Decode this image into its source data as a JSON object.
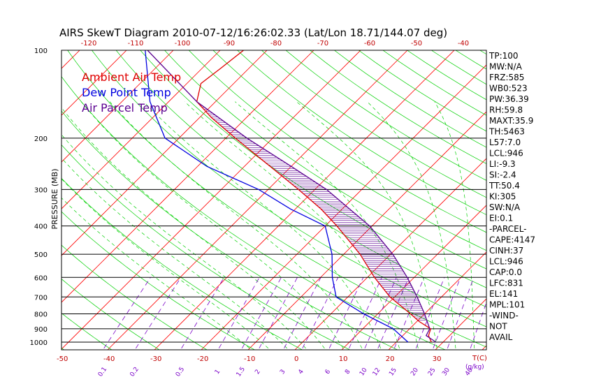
{
  "chart_data": {
    "type": "line",
    "title": "AIRS SkewT Diagram 2010-07-12/16:26:02.33 (Lat/Lon 18.71/144.07 deg)",
    "ylabel": "PRESSURE (MB)",
    "y_scale": "log",
    "ylim": [
      1050,
      100
    ],
    "pressure_ticks": [
      100,
      200,
      300,
      400,
      500,
      600,
      700,
      800,
      900,
      1000
    ],
    "bottom_temp_ticks": [
      -50,
      -40,
      -30,
      -20,
      -10,
      0,
      10,
      20,
      30
    ],
    "bottom_temp_unit": "T(C)",
    "top_temp_ticks": [
      -120,
      -110,
      -100,
      -90,
      -80,
      -70,
      -60,
      -50,
      -40
    ],
    "mixing_ratio_ticks": [
      "0.1",
      "0.2",
      "0.5",
      "1",
      "1.5",
      "2",
      "3",
      "4",
      "6",
      "8",
      "10",
      "12",
      "15",
      "20",
      "25",
      "30",
      "40"
    ],
    "mixing_ratio_unit": "(g/kg)",
    "legend": [
      {
        "label": "Ambient Air Temp",
        "color": "#e00000"
      },
      {
        "label": "Dew Point Temp",
        "color": "#0000e0"
      },
      {
        "label": "Air Parcel Temp",
        "color": "#5a0090"
      }
    ],
    "series": [
      {
        "name": "Ambient Air Temp",
        "points": [
          {
            "p": 1000,
            "t": 27.5
          },
          {
            "p": 950,
            "t": 25.5
          },
          {
            "p": 900,
            "t": 24.5
          },
          {
            "p": 850,
            "t": 20.5
          },
          {
            "p": 800,
            "t": 17.0
          },
          {
            "p": 700,
            "t": 9.0
          },
          {
            "p": 600,
            "t": 1.5
          },
          {
            "p": 500,
            "t": -6.5
          },
          {
            "p": 400,
            "t": -17.5
          },
          {
            "p": 350,
            "t": -24.5
          },
          {
            "p": 300,
            "t": -33.5
          },
          {
            "p": 250,
            "t": -44.5
          },
          {
            "p": 200,
            "t": -58.0
          },
          {
            "p": 170,
            "t": -67.5
          },
          {
            "p": 150,
            "t": -74.0
          },
          {
            "p": 130,
            "t": -77.0
          },
          {
            "p": 115,
            "t": -76.0
          },
          {
            "p": 100,
            "t": -75.0
          }
        ]
      },
      {
        "name": "Dew Point Temp",
        "points": [
          {
            "p": 1000,
            "t": 22.5
          },
          {
            "p": 900,
            "t": 16.5
          },
          {
            "p": 800,
            "t": 7.0
          },
          {
            "p": 700,
            "t": -2.5
          },
          {
            "p": 600,
            "t": -7.5
          },
          {
            "p": 500,
            "t": -12.5
          },
          {
            "p": 400,
            "t": -20.0
          },
          {
            "p": 350,
            "t": -31.0
          },
          {
            "p": 300,
            "t": -42.0
          },
          {
            "p": 250,
            "t": -58.0
          },
          {
            "p": 200,
            "t": -73.0
          },
          {
            "p": 150,
            "t": -84.0
          },
          {
            "p": 100,
            "t": -96.0
          }
        ]
      },
      {
        "name": "Air Parcel Temp",
        "points": [
          {
            "p": 1000,
            "t": 28.5
          },
          {
            "p": 950,
            "t": 25.0
          },
          {
            "p": 900,
            "t": 24.3
          },
          {
            "p": 800,
            "t": 20.0
          },
          {
            "p": 700,
            "t": 14.8
          },
          {
            "p": 600,
            "t": 8.5
          },
          {
            "p": 500,
            "t": 0.5
          },
          {
            "p": 400,
            "t": -10.5
          },
          {
            "p": 300,
            "t": -27.5
          },
          {
            "p": 250,
            "t": -40.0
          },
          {
            "p": 200,
            "t": -55.5
          },
          {
            "p": 150,
            "t": -74.0
          },
          {
            "p": 100,
            "t": -95.5
          }
        ]
      }
    ]
  },
  "stats": [
    "TP:100",
    "MW:N/A",
    "FRZ:585",
    "WB0:523",
    "PW:36.39",
    "RH:59.8",
    "MAXT:35.9",
    "TH:5463",
    "L57:7.0",
    "LCL:946",
    "LI:-9.3",
    "SI:-2.4",
    "TT:50.4",
    "KI:305",
    "SW:N/A",
    "EI:0.1",
    "-PARCEL-",
    "CAPE:4147",
    "CINH:37",
    "LCL:946",
    "CAP:0.0",
    "LFC:831",
    "EL:141",
    "MPL:101",
    "-WIND-",
    "NOT",
    "AVAIL"
  ],
  "colors": {
    "isotherm": "#ff0000",
    "dry_adiabat": "#00d000",
    "moist_adiabat": "#00d000",
    "mixing_ratio": "#7a00c8",
    "hatch": "#5a0090"
  }
}
